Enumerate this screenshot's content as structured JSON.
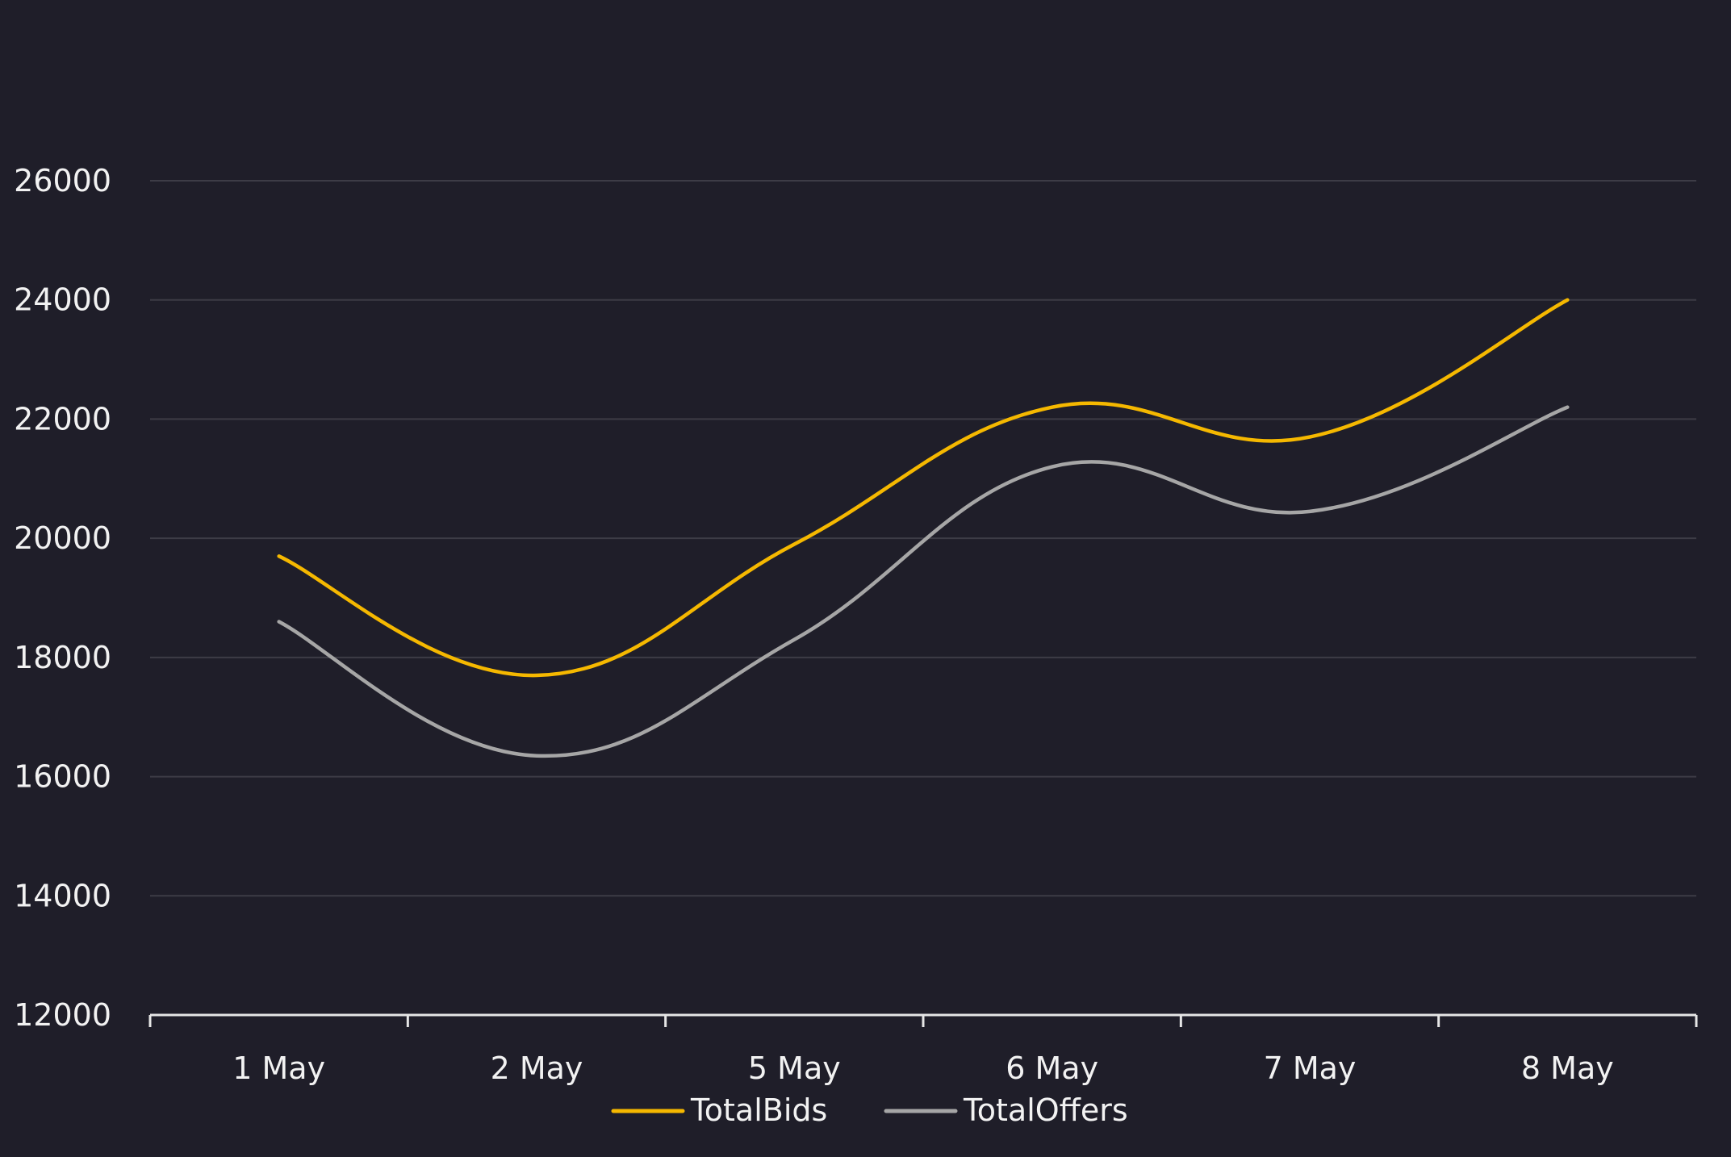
{
  "chart_data": {
    "type": "line",
    "title": "",
    "xlabel": "",
    "ylabel": "",
    "categories": [
      "1 May",
      "2 May",
      "5 May",
      "6 May",
      "7 May",
      "8 May"
    ],
    "ylim": [
      12000,
      26000
    ],
    "y_ticks": [
      12000,
      14000,
      16000,
      18000,
      20000,
      22000,
      24000,
      26000
    ],
    "y_tick_labels": [
      "12000",
      "14000",
      "16000",
      "18000",
      "20000",
      "22000",
      "24000",
      "26000"
    ],
    "grid": true,
    "smooth": true,
    "legend_position": "bottom-center",
    "series": [
      {
        "name": "TotalBids",
        "color": "#f5b800",
        "values": [
          19700,
          17700,
          19900,
          22200,
          21700,
          24000
        ]
      },
      {
        "name": "TotalOffers",
        "color": "#a6a6a6",
        "values": [
          18600,
          16350,
          18300,
          21200,
          20450,
          22200
        ]
      }
    ]
  },
  "colors": {
    "background": "#1f1e29",
    "gridline": "#3d3c46",
    "axis": "#e6e6e6",
    "text": "#f2f2f2"
  }
}
